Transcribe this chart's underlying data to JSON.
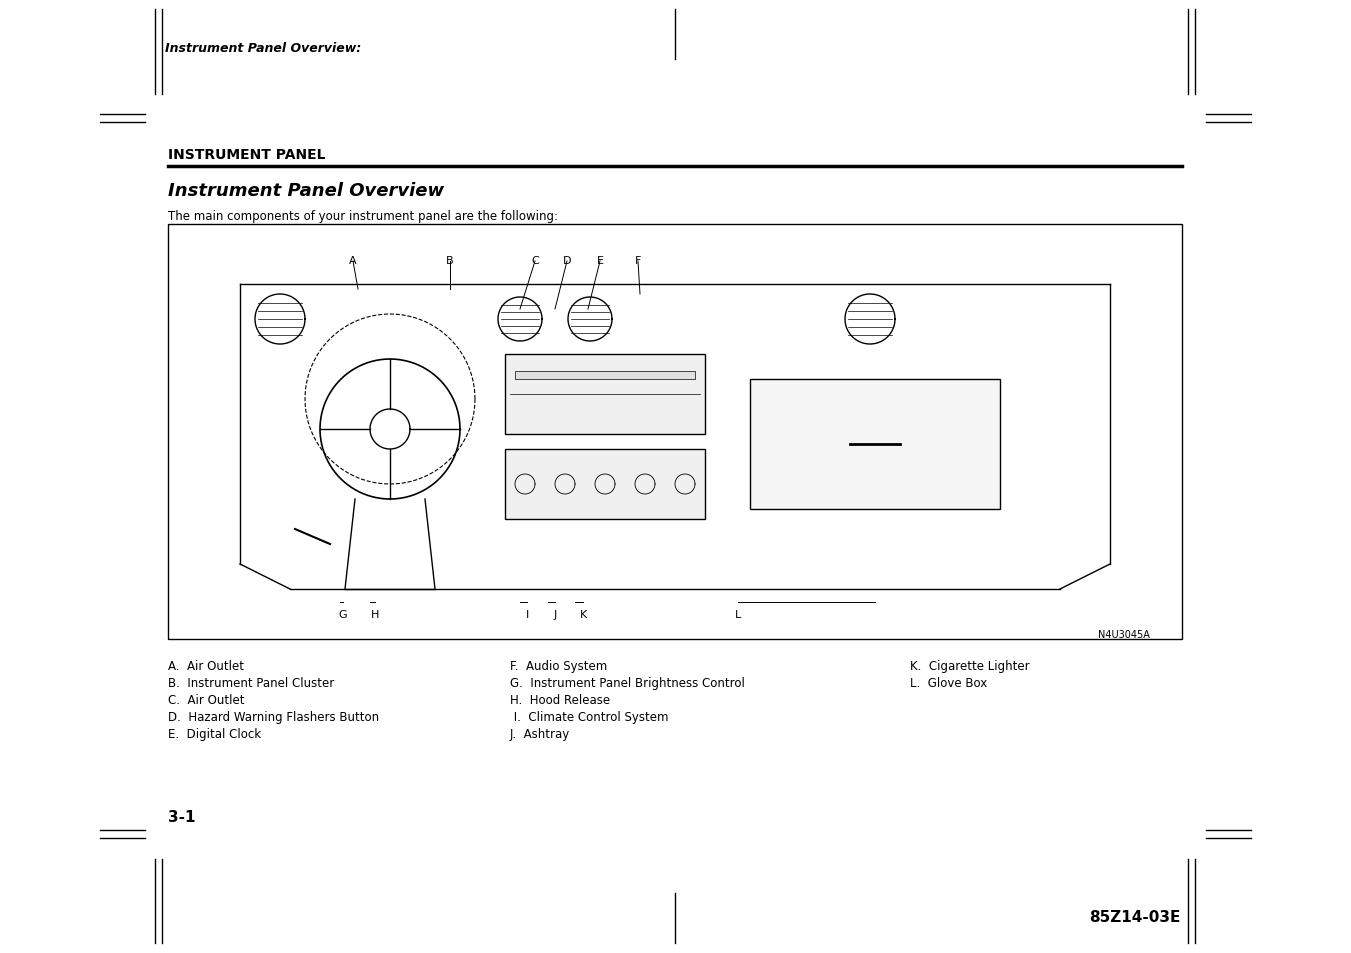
{
  "page_title": "Instrument Panel Overview:",
  "section_heading": "INSTRUMENT PANEL",
  "subsection_heading": "Instrument Panel Overview",
  "intro_text": "The main components of your instrument panel are the following:",
  "diagram_label_top": [
    "A",
    "B",
    "C",
    "D",
    "E",
    "F"
  ],
  "diagram_label_bottom": [
    "G",
    "H",
    "I",
    "J",
    "K",
    "L"
  ],
  "diagram_code": "N4U3045A",
  "legend_col1": [
    "A.  Air Outlet",
    "B.  Instrument Panel Cluster",
    "C.  Air Outlet",
    "D.  Hazard Warning Flashers Button",
    "E.  Digital Clock"
  ],
  "legend_col2": [
    "F.  Audio System",
    "G.  Instrument Panel Brightness Control",
    "H.  Hood Release",
    " I.  Climate Control System",
    "J.  Ashtray"
  ],
  "legend_col3": [
    "K.  Cigarette Lighter",
    "L.  Glove Box"
  ],
  "page_num": "3-1",
  "doc_code": "85Z14-03E",
  "bg_color": "#ffffff",
  "text_color": "#000000"
}
